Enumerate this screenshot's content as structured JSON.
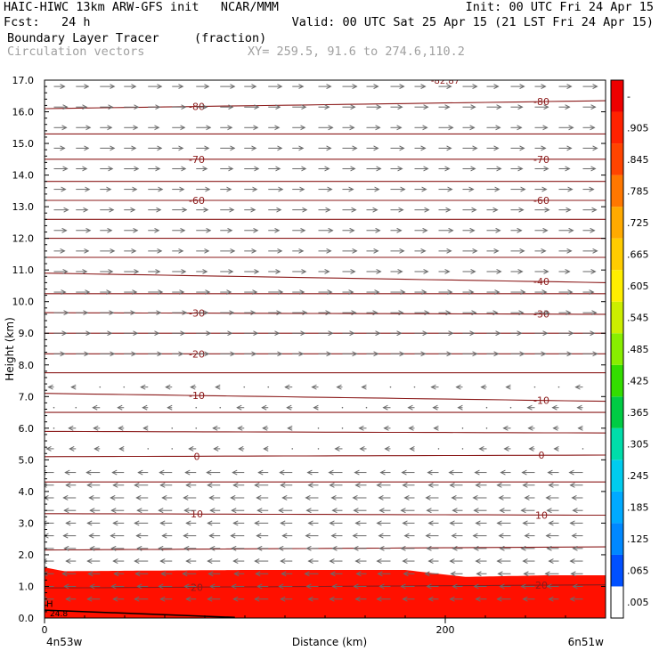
{
  "header": {
    "line1_left": "HAIC-HIWC 13km ARW-GFS init   NCAR/MMM",
    "line1_right": "Init: 00 UTC Fri 24 Apr 15",
    "line2_left": "Fcst:   24 h",
    "line2_right": "Valid: 00 UTC Sat 25 Apr 15 (21 LST Fri 24 Apr 15)",
    "line3_left": "Boundary Layer Tracer",
    "line3_mid": "(fraction)",
    "line4_left": "Circulation vectors",
    "line4_mid": "XY= 259.5, 91.6 to 274.6,110.2"
  },
  "chart_data": {
    "type": "heatmap",
    "title": "Boundary Layer Tracer (fraction)",
    "xlabel": "Distance (km)",
    "ylabel": "Height (km)",
    "xlim": [
      0,
      280
    ],
    "ylim": [
      0,
      17
    ],
    "x_ticks": [
      {
        "value": 0,
        "label": "0"
      },
      {
        "value": 200,
        "label": "200"
      }
    ],
    "x_endpoints": {
      "left": "4n53w",
      "right": "6n51w"
    },
    "y_ticks": [
      0,
      1,
      2,
      3,
      4,
      5,
      6,
      7,
      8,
      9,
      10,
      11,
      12,
      13,
      14,
      15,
      16,
      17
    ],
    "y_tick_labels": [
      "0.0",
      "1.0",
      "2.0",
      "3.0",
      "4.0",
      "5.0",
      "6.0",
      "7.0",
      "8.0",
      "9.0",
      "10.0",
      "11.0",
      "12.0",
      "13.0",
      "14.0",
      "15.0",
      "16.0",
      "17.0"
    ],
    "colorbar": {
      "labels": [
        ".005",
        ".065",
        ".125",
        ".185",
        ".245",
        ".305",
        ".365",
        ".425",
        ".485",
        ".545",
        ".605",
        ".665",
        ".725",
        ".785",
        ".845",
        ".905",
        "-"
      ],
      "colors": [
        "#ffffff",
        "#0050ff",
        "#0088ff",
        "#00aaff",
        "#00ccee",
        "#00ddaa",
        "#00cc44",
        "#33dd00",
        "#88ee00",
        "#ccee00",
        "#ffee00",
        "#ffcc00",
        "#ffaa00",
        "#ff7700",
        "#ff4400",
        "#ff2200",
        "#ee0000"
      ]
    },
    "tracer_layer": {
      "top_km": [
        [
          0,
          1.6
        ],
        [
          10,
          1.48
        ],
        [
          100,
          1.52
        ],
        [
          180,
          1.52
        ],
        [
          210,
          1.3
        ],
        [
          250,
          1.35
        ],
        [
          280,
          1.35
        ]
      ],
      "bands_km": [
        {
          "frac": 0.3,
          "color": "#0030e0"
        },
        {
          "frac": 0.45,
          "color": "#00a0ff"
        },
        {
          "frac": 0.55,
          "color": "#00e0c0"
        },
        {
          "frac": 0.65,
          "color": "#40e000"
        },
        {
          "frac": 0.75,
          "color": "#e0e000"
        },
        {
          "frac": 0.85,
          "color": "#ffa000"
        },
        {
          "frac": 1.0,
          "color": "#ff1000"
        }
      ]
    },
    "contours": {
      "color": "#8b1a1a",
      "levels": [
        {
          "y_left": 16.1,
          "y_right": 16.35,
          "label_left": "-80",
          "label_right": "-80"
        },
        {
          "y_left": 15.3,
          "y_right": 15.3
        },
        {
          "y_left": 14.5,
          "y_right": 14.5,
          "label_left": "-70",
          "label_right": "-70"
        },
        {
          "y_left": 13.8,
          "y_right": 13.8
        },
        {
          "y_left": 13.2,
          "y_right": 13.2,
          "label_left": "-60",
          "label_right": "-60"
        },
        {
          "y_left": 12.6,
          "y_right": 12.6
        },
        {
          "y_left": 12.0,
          "y_right": 12.0
        },
        {
          "y_left": 11.4,
          "y_right": 11.4
        },
        {
          "y_left": 10.9,
          "y_right": 10.6,
          "label_right": "-40"
        },
        {
          "y_left": 10.25,
          "y_right": 10.25
        },
        {
          "y_left": 9.65,
          "y_right": 9.6,
          "label_left": "-30",
          "label_right": "-30"
        },
        {
          "y_left": 9.0,
          "y_right": 9.0
        },
        {
          "y_left": 8.35,
          "y_right": 8.35,
          "label_left": "-20"
        },
        {
          "y_left": 7.75,
          "y_right": 7.75
        },
        {
          "y_left": 7.1,
          "y_right": 6.85,
          "label_left": "-10",
          "label_right": "-10"
        },
        {
          "y_left": 6.5,
          "y_right": 6.5
        },
        {
          "y_left": 5.9,
          "y_right": 5.85
        },
        {
          "y_left": 5.1,
          "y_right": 5.15,
          "label_left": "0",
          "label_right": "0"
        },
        {
          "y_left": 4.3,
          "y_right": 4.3
        },
        {
          "y_left": 3.3,
          "y_right": 3.25,
          "label_left": "10",
          "label_right": "10"
        },
        {
          "y_left": 2.15,
          "y_right": 2.25
        },
        {
          "y_left": 0.95,
          "y_right": 1.05,
          "label_left": "20",
          "label_right": "20"
        }
      ]
    },
    "top_partial_label": "-82.87",
    "h_marker": "H",
    "bottom_left_label": "24.8",
    "vectors": {
      "x_columns_km": [
        2,
        13,
        25,
        37,
        49,
        61,
        73,
        85,
        97,
        109,
        121,
        134,
        146,
        158,
        170,
        182,
        194,
        206,
        218,
        230,
        242,
        254,
        266
      ],
      "upper": {
        "y_start_km": 16.8,
        "y_step_km": 0.65,
        "until_km": 8.0,
        "direction": "east"
      },
      "mid": {
        "y_start_km": 7.3,
        "y_step_km": 0.65,
        "until_km": 5.3,
        "direction": "west_light"
      },
      "lower": {
        "y_start_km": 4.6,
        "y_step_km": 0.4,
        "until_km": 0.2,
        "direction": "west"
      }
    }
  }
}
